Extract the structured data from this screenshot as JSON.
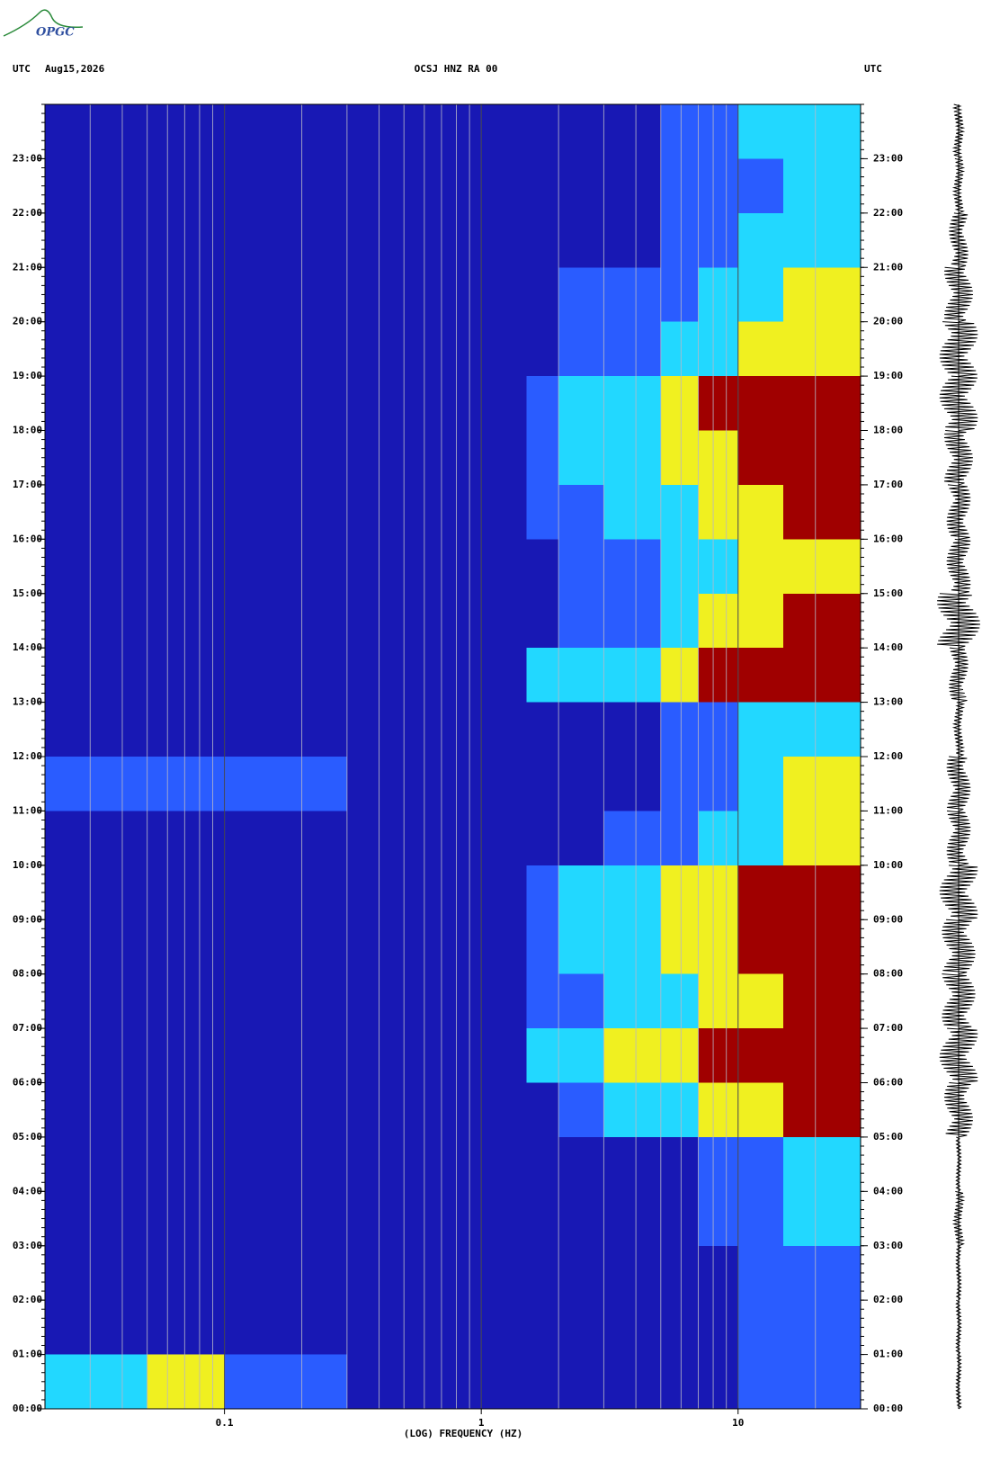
{
  "logo": "OPGC",
  "chart_data": {
    "type": "heatmap",
    "title": "OCSJ HNZ RA 00",
    "date": "Aug15,2026",
    "left_label": "UTC",
    "right_label": "UTC",
    "x_label": "(LOG) FREQUENCY (HZ)",
    "x_log": true,
    "xlim": [
      0.02,
      30
    ],
    "xticks": [
      {
        "value": 0.1,
        "label": "0.1"
      },
      1,
      10
    ],
    "xgrid": [
      0.03,
      0.04,
      0.05,
      0.06,
      0.07,
      0.08,
      0.09,
      0.1,
      0.2,
      0.3,
      0.4,
      0.5,
      0.6,
      0.7,
      0.8,
      0.9,
      1,
      2,
      3,
      4,
      5,
      6,
      7,
      8,
      9,
      10,
      20
    ],
    "ylim": [
      0,
      24
    ],
    "yticks": [
      {
        "value": 0,
        "label": "00:00"
      },
      {
        "value": 1,
        "label": "01:00"
      },
      {
        "value": 2,
        "label": "02:00"
      },
      {
        "value": 3,
        "label": "03:00"
      },
      {
        "value": 4,
        "label": "04:00"
      },
      {
        "value": 5,
        "label": "05:00"
      },
      {
        "value": 6,
        "label": "06:00"
      },
      {
        "value": 7,
        "label": "07:00"
      },
      {
        "value": 8,
        "label": "08:00"
      },
      {
        "value": 9,
        "label": "09:00"
      },
      {
        "value": 10,
        "label": "10:00"
      },
      {
        "value": 11,
        "label": "11:00"
      },
      {
        "value": 12,
        "label": "12:00"
      },
      {
        "value": 13,
        "label": "13:00"
      },
      {
        "value": 14,
        "label": "14:00"
      },
      {
        "value": 15,
        "label": "15:00"
      },
      {
        "value": 16,
        "label": "16:00"
      },
      {
        "value": 17,
        "label": "17:00"
      },
      {
        "value": 18,
        "label": "18:00"
      },
      {
        "value": 19,
        "label": "19:00"
      },
      {
        "value": 20,
        "label": "20:00"
      },
      {
        "value": 21,
        "label": "21:00"
      },
      {
        "value": 22,
        "label": "22:00"
      },
      {
        "value": 23,
        "label": "23:00"
      }
    ],
    "x_bins": [
      0.02,
      0.05,
      0.1,
      0.3,
      1,
      1.5,
      2,
      3,
      5,
      7,
      10,
      15,
      30
    ],
    "y_bins": [
      0,
      1,
      2,
      3,
      4,
      5,
      6,
      7,
      8,
      9,
      10,
      11,
      12,
      13,
      14,
      15,
      16,
      17,
      18,
      19,
      20,
      21,
      22,
      23,
      24
    ],
    "colors": [
      "#1818b4",
      "#2a5cff",
      "#22d8ff",
      "#f0f020",
      "#a00000"
    ],
    "values": [
      [
        2,
        3,
        1,
        0,
        0,
        0,
        0,
        0,
        0,
        0,
        1,
        1
      ],
      [
        0,
        0,
        0,
        0,
        0,
        0,
        0,
        0,
        0,
        0,
        1,
        1
      ],
      [
        0,
        0,
        0,
        0,
        0,
        0,
        0,
        0,
        0,
        0,
        1,
        1
      ],
      [
        0,
        0,
        0,
        0,
        0,
        0,
        0,
        0,
        0,
        1,
        1,
        2
      ],
      [
        0,
        0,
        0,
        0,
        0,
        0,
        0,
        0,
        0,
        1,
        1,
        2
      ],
      [
        0,
        0,
        0,
        0,
        0,
        0,
        1,
        2,
        2,
        3,
        3,
        4
      ],
      [
        0,
        0,
        0,
        0,
        0,
        2,
        2,
        3,
        3,
        4,
        4,
        4
      ],
      [
        0,
        0,
        0,
        0,
        0,
        1,
        1,
        2,
        2,
        3,
        3,
        4
      ],
      [
        0,
        0,
        0,
        0,
        0,
        1,
        2,
        2,
        3,
        3,
        4,
        4
      ],
      [
        0,
        0,
        0,
        0,
        0,
        1,
        2,
        2,
        3,
        3,
        4,
        4
      ],
      [
        0,
        0,
        0,
        0,
        0,
        0,
        0,
        1,
        1,
        2,
        2,
        3
      ],
      [
        1,
        1,
        1,
        0,
        0,
        0,
        0,
        0,
        1,
        1,
        2,
        3
      ],
      [
        0,
        0,
        0,
        0,
        0,
        0,
        0,
        0,
        1,
        1,
        2,
        2
      ],
      [
        0,
        0,
        0,
        0,
        0,
        2,
        2,
        2,
        3,
        4,
        4,
        4
      ],
      [
        0,
        0,
        0,
        0,
        0,
        0,
        1,
        1,
        2,
        3,
        3,
        4
      ],
      [
        0,
        0,
        0,
        0,
        0,
        0,
        1,
        1,
        2,
        2,
        3,
        3
      ],
      [
        0,
        0,
        0,
        0,
        0,
        1,
        1,
        2,
        2,
        3,
        3,
        4
      ],
      [
        0,
        0,
        0,
        0,
        0,
        1,
        2,
        2,
        3,
        3,
        4,
        4
      ],
      [
        0,
        0,
        0,
        0,
        0,
        1,
        2,
        2,
        3,
        4,
        4,
        4
      ],
      [
        0,
        0,
        0,
        0,
        0,
        0,
        1,
        1,
        2,
        2,
        3,
        3
      ],
      [
        0,
        0,
        0,
        0,
        0,
        0,
        1,
        1,
        1,
        2,
        2,
        3
      ],
      [
        0,
        0,
        0,
        0,
        0,
        0,
        0,
        0,
        1,
        1,
        2,
        2
      ],
      [
        0,
        0,
        0,
        0,
        0,
        0,
        0,
        0,
        1,
        1,
        1,
        2
      ],
      [
        0,
        0,
        0,
        0,
        0,
        0,
        0,
        0,
        1,
        1,
        2,
        2
      ]
    ],
    "trace_amplitude": [
      1,
      1,
      1,
      2,
      1,
      6,
      8,
      7,
      7,
      8,
      5,
      5,
      2,
      4,
      9,
      5,
      5,
      6,
      8,
      8,
      6,
      4,
      2,
      2
    ]
  }
}
